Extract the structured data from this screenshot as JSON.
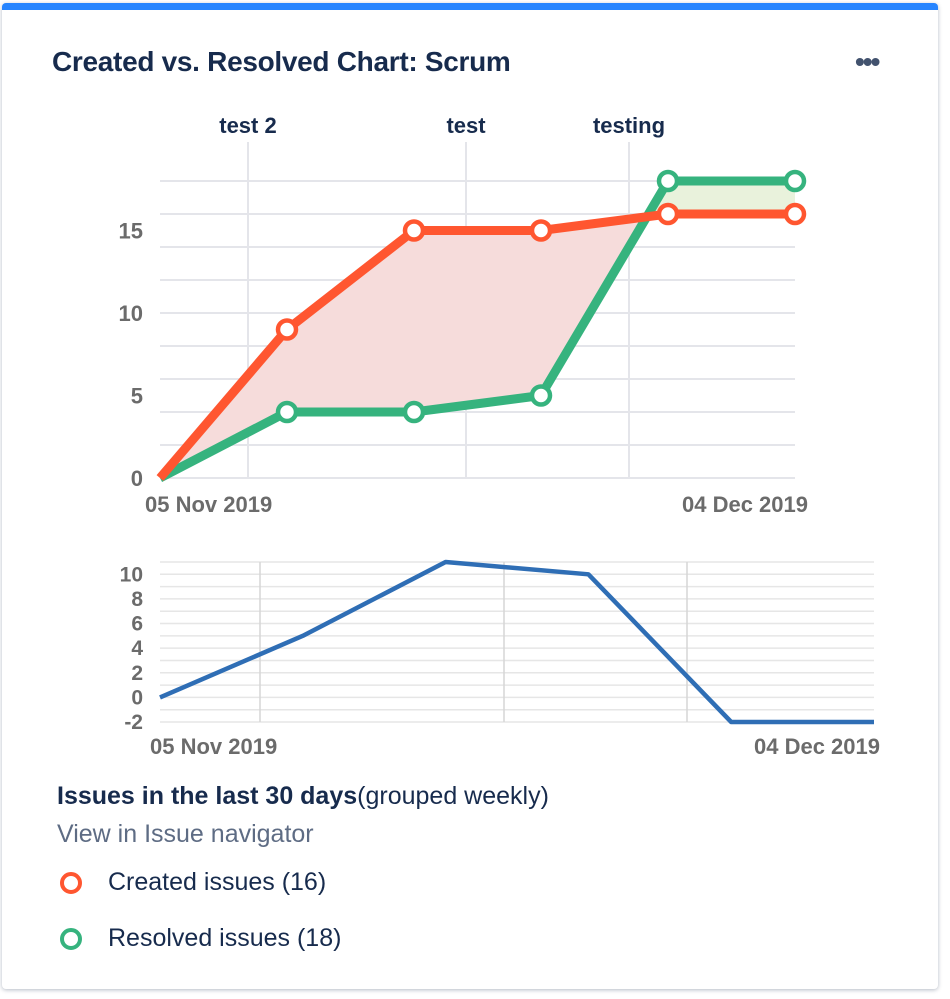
{
  "header": {
    "title": "Created vs. Resolved Chart: Scrum",
    "more_icon": "more-horizontal-icon"
  },
  "colors": {
    "accent": "#2684ff",
    "created": "#ff5630",
    "resolved": "#36b37e",
    "diff": "#2f6eb5",
    "created_fill": "#f6dcdb",
    "resolved_fill": "#e9f2dc"
  },
  "chart_data": [
    {
      "type": "line",
      "x": [
        "05 Nov 2019",
        "",
        "",
        "",
        "",
        "04 Dec 2019"
      ],
      "xtick_labels": [
        "05 Nov 2019",
        "04 Dec 2019"
      ],
      "series": [
        {
          "name": "Created issues",
          "values": [
            0,
            9,
            15,
            15,
            16,
            16
          ]
        },
        {
          "name": "Resolved issues",
          "values": [
            0,
            4,
            4,
            5,
            18,
            18
          ]
        }
      ],
      "ylim": [
        0,
        18
      ],
      "yticks": [
        0,
        5,
        10,
        15
      ],
      "versions": [
        "test 2",
        "test",
        "testing"
      ],
      "grid": true
    },
    {
      "type": "line",
      "x": [
        "05 Nov 2019",
        "",
        "",
        "",
        "",
        "04 Dec 2019"
      ],
      "xtick_labels": [
        "05 Nov 2019",
        "04 Dec 2019"
      ],
      "series": [
        {
          "values": [
            0,
            5,
            11,
            10,
            -2,
            -2
          ]
        }
      ],
      "ylim": [
        -2,
        11
      ],
      "yticks": [
        -2,
        0,
        2,
        4,
        6,
        8,
        10
      ],
      "grid": true
    }
  ],
  "footer": {
    "summary_bold": "Issues in the last 30 days",
    "summary_rest": "(grouped weekly)",
    "link": "View in Issue navigator",
    "legend": [
      {
        "label": "Created issues (16)"
      },
      {
        "label": "Resolved issues (18)"
      }
    ]
  }
}
